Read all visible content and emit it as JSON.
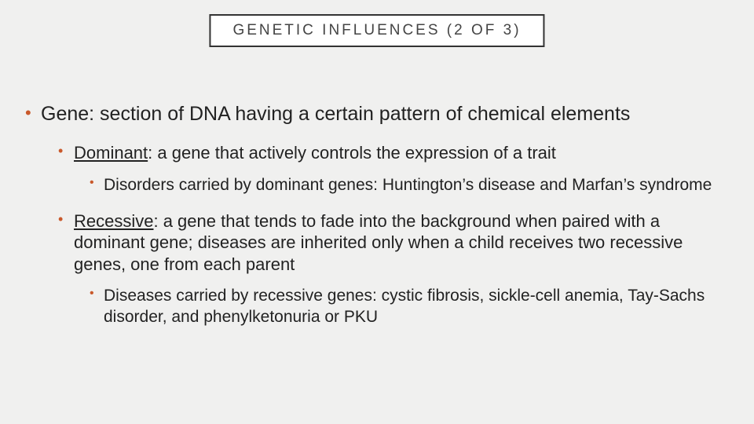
{
  "colors": {
    "background": "#f0f0ef",
    "text": "#222222",
    "bullet": "#c9592b",
    "title_border": "#333333",
    "title_bg": "#ffffff"
  },
  "typography": {
    "title_fontsize": 19,
    "title_letter_spacing": 3,
    "lvl1_fontsize": 25,
    "lvl2_fontsize": 22,
    "lvl3_fontsize": 21
  },
  "title": "GENETIC INFLUENCES (2 OF 3)",
  "bullets": {
    "item1": "Gene: section of DNA having a certain pattern of chemical elements",
    "dominant_term": "Dominant",
    "dominant_rest": ": a gene that actively controls the expression of a trait",
    "dominant_sub": "Disorders carried by dominant genes: Huntington’s disease and Marfan’s syndrome",
    "recessive_term": "Recessive",
    "recessive_rest": ": a gene that tends to fade into the background when paired with a dominant gene; diseases are inherited only when a child receives two recessive genes, one from each parent",
    "recessive_sub": "Diseases carried by recessive genes: cystic fibrosis, sickle-cell anemia, Tay-Sachs disorder, and phenylketonuria or PKU"
  }
}
